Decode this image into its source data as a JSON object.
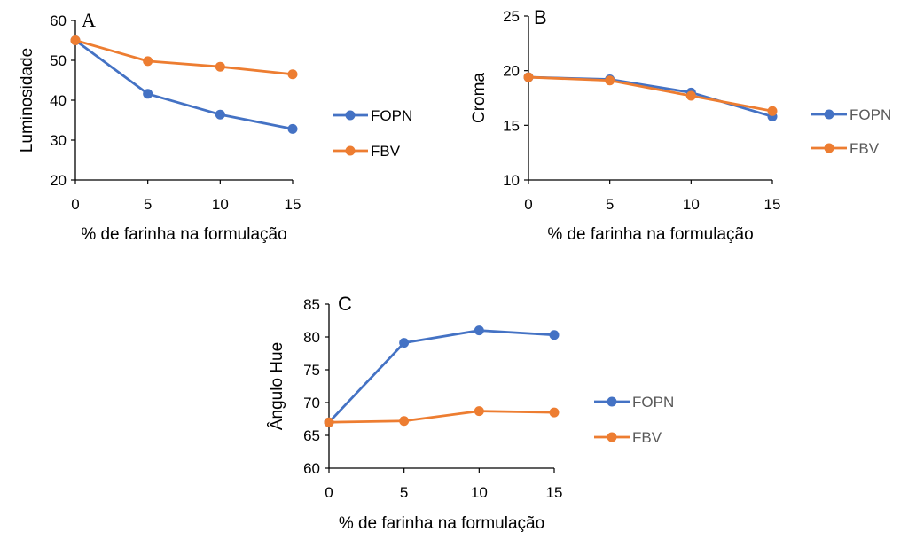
{
  "colors": {
    "FOPN": "#4472C4",
    "FBV": "#ED7D31",
    "axis": "#000000"
  },
  "chart_data": [
    {
      "type": "line",
      "panel": "A",
      "title": "",
      "xlabel": "% de farinha na formulação",
      "ylabel": "Luminosidade",
      "x": [
        0,
        5,
        10,
        15
      ],
      "xticks": [
        "0",
        "5",
        "10",
        "15"
      ],
      "yticks": [
        "20",
        "30",
        "40",
        "50",
        "60"
      ],
      "ylim": [
        20,
        60
      ],
      "grid": false,
      "legend": "right",
      "legend_text_color": "#000000",
      "series": [
        {
          "name": "FOPN",
          "values": [
            55.0,
            41.6,
            36.4,
            32.8
          ]
        },
        {
          "name": "FBV",
          "values": [
            55.0,
            49.8,
            48.4,
            46.5
          ]
        }
      ]
    },
    {
      "type": "line",
      "panel": "B",
      "title": "",
      "xlabel": "% de farinha na formulação",
      "ylabel": "Croma",
      "x": [
        0,
        5,
        10,
        15
      ],
      "xticks": [
        "0",
        "5",
        "10",
        "15"
      ],
      "yticks": [
        "10",
        "15",
        "20",
        "25"
      ],
      "ylim": [
        10,
        25
      ],
      "grid": false,
      "legend": "right",
      "legend_text_color": "#595959",
      "series": [
        {
          "name": "FOPN",
          "values": [
            19.4,
            19.2,
            18.0,
            15.8
          ]
        },
        {
          "name": "FBV",
          "values": [
            19.4,
            19.1,
            17.7,
            16.3
          ]
        }
      ]
    },
    {
      "type": "line",
      "panel": "C",
      "title": "",
      "xlabel": "% de farinha na formulação",
      "ylabel": "Ângulo Hue",
      "x": [
        0,
        5,
        10,
        15
      ],
      "xticks": [
        "0",
        "5",
        "10",
        "15"
      ],
      "yticks": [
        "60",
        "65",
        "70",
        "75",
        "80",
        "85"
      ],
      "ylim": [
        60,
        85
      ],
      "grid": false,
      "legend": "right",
      "legend_text_color": "#595959",
      "series": [
        {
          "name": "FOPN",
          "values": [
            67.0,
            79.1,
            81.0,
            80.3
          ]
        },
        {
          "name": "FBV",
          "values": [
            67.0,
            67.2,
            68.7,
            68.5
          ]
        }
      ]
    }
  ]
}
